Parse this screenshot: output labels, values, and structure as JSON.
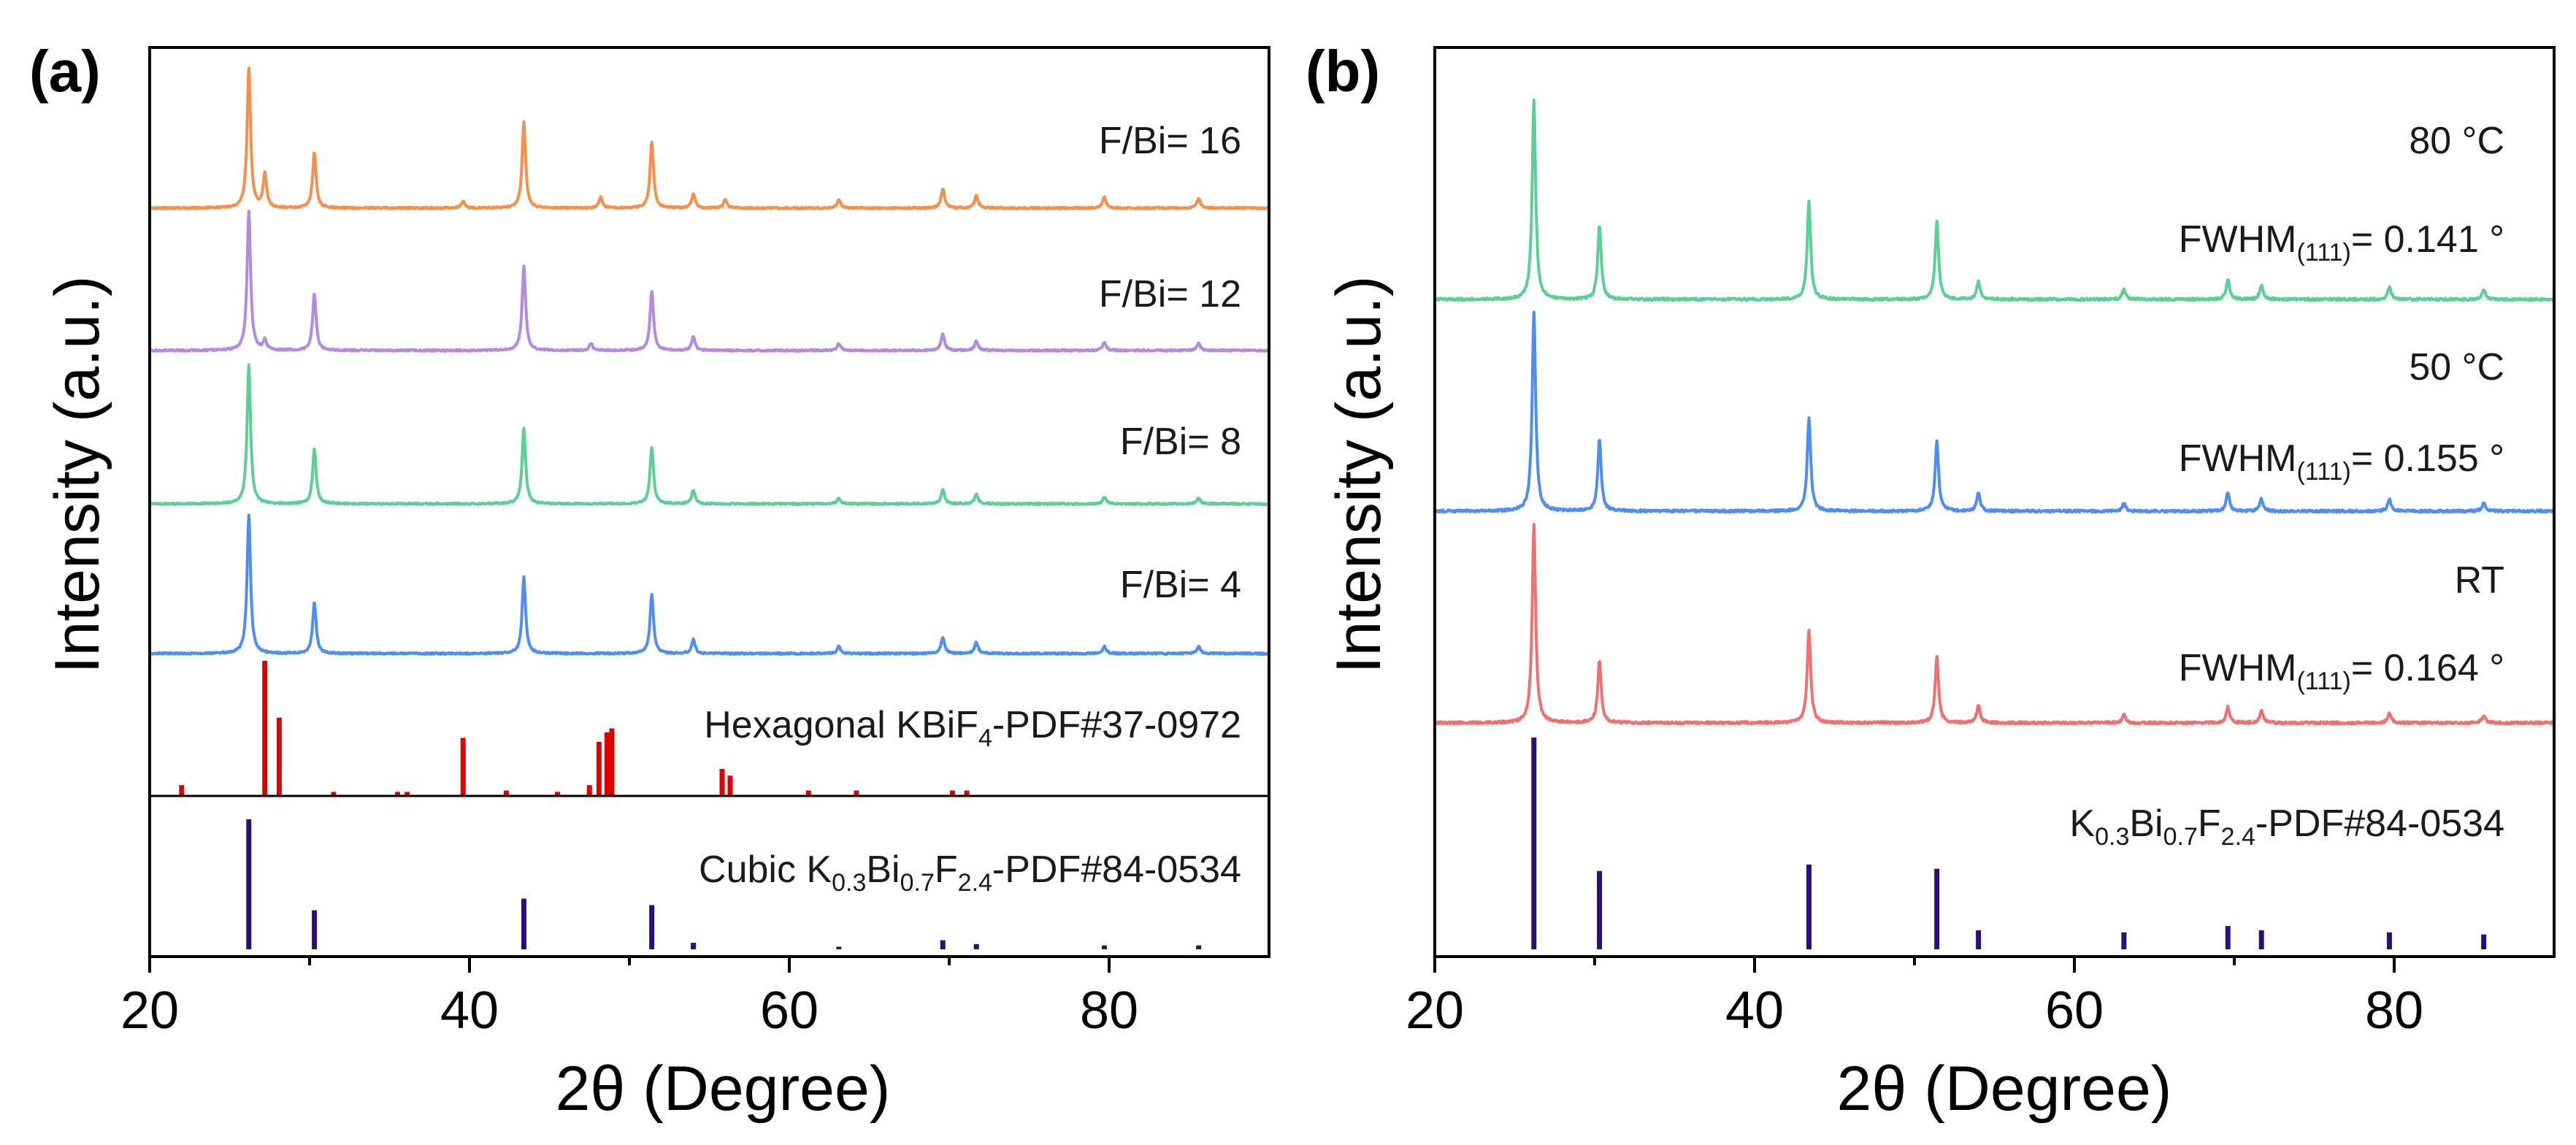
{
  "colors": {
    "orange": "#f4904c",
    "purple": "#b38ae0",
    "green": "#5ccf95",
    "blue": "#4f8ef0",
    "red_trace": "#f07070",
    "ref_red": "#e00000",
    "ref_navy": "#2a0f78"
  },
  "chart_data": [
    {
      "type": "line",
      "panel_label": "(a)",
      "xlabel": "2θ (Degree)",
      "ylabel": "Intensity (a.u.)",
      "xlim": [
        20,
        90
      ],
      "xticks": [
        20,
        40,
        60,
        80
      ],
      "x_tick_labels": [
        "20",
        "40",
        "60",
        "80"
      ],
      "series": [
        {
          "name": "F/Bi= 16",
          "label": "F/Bi= 16",
          "color": "#f4904c",
          "baseline": 1.0,
          "peaks": [
            [
              26.2,
              1.0
            ],
            [
              27.2,
              0.24
            ],
            [
              30.3,
              0.4
            ],
            [
              39.6,
              0.05
            ],
            [
              43.4,
              0.62
            ],
            [
              48.2,
              0.08
            ],
            [
              51.4,
              0.48
            ],
            [
              54.0,
              0.1
            ],
            [
              56.0,
              0.06
            ],
            [
              63.1,
              0.06
            ],
            [
              69.6,
              0.14
            ],
            [
              71.7,
              0.09
            ],
            [
              79.7,
              0.08
            ],
            [
              85.6,
              0.07
            ]
          ]
        },
        {
          "name": "F/Bi= 12",
          "label": "F/Bi= 12",
          "color": "#b38ae0",
          "baseline": 1.0,
          "peaks": [
            [
              26.2,
              1.0
            ],
            [
              27.2,
              0.07
            ],
            [
              30.3,
              0.41
            ],
            [
              43.4,
              0.61
            ],
            [
              47.6,
              0.05
            ],
            [
              51.4,
              0.43
            ],
            [
              54.0,
              0.1
            ],
            [
              63.1,
              0.05
            ],
            [
              69.6,
              0.12
            ],
            [
              71.7,
              0.07
            ],
            [
              79.7,
              0.06
            ],
            [
              85.6,
              0.05
            ]
          ]
        },
        {
          "name": "F/Bi= 8",
          "label": "F/Bi= 8",
          "color": "#5ccf95",
          "baseline": 1.0,
          "peaks": [
            [
              26.2,
              1.0
            ],
            [
              30.3,
              0.4
            ],
            [
              43.4,
              0.55
            ],
            [
              51.4,
              0.41
            ],
            [
              54.0,
              0.1
            ],
            [
              63.1,
              0.04
            ],
            [
              69.6,
              0.1
            ],
            [
              71.7,
              0.07
            ],
            [
              79.7,
              0.05
            ],
            [
              85.6,
              0.04
            ]
          ]
        },
        {
          "name": "F/Bi= 4",
          "label": "F/Bi= 4",
          "color": "#4f8ef0",
          "baseline": 1.0,
          "peaks": [
            [
              26.2,
              1.0
            ],
            [
              30.3,
              0.37
            ],
            [
              43.4,
              0.55
            ],
            [
              51.4,
              0.43
            ],
            [
              54.0,
              0.1
            ],
            [
              63.1,
              0.05
            ],
            [
              69.6,
              0.12
            ],
            [
              71.7,
              0.08
            ],
            [
              79.7,
              0.05
            ],
            [
              85.6,
              0.05
            ]
          ]
        }
      ],
      "reference_patterns": [
        {
          "name": "Hexagonal KBiF4-PDF#37-0972",
          "label_main": "Hexagonal KBiF",
          "label_sub": "4",
          "label_tail": "-PDF#37-0972",
          "color": "#e00000",
          "sticks": [
            [
              22.0,
              0.08
            ],
            [
              27.2,
              1.0
            ],
            [
              28.1,
              0.58
            ],
            [
              31.5,
              0.03
            ],
            [
              35.5,
              0.03
            ],
            [
              36.1,
              0.03
            ],
            [
              39.6,
              0.43
            ],
            [
              42.3,
              0.04
            ],
            [
              45.5,
              0.03
            ],
            [
              47.5,
              0.08
            ],
            [
              48.1,
              0.4
            ],
            [
              48.6,
              0.47
            ],
            [
              48.9,
              0.5
            ],
            [
              55.8,
              0.2
            ],
            [
              56.3,
              0.15
            ],
            [
              61.2,
              0.04
            ],
            [
              64.2,
              0.04
            ],
            [
              70.2,
              0.04
            ],
            [
              71.1,
              0.04
            ]
          ]
        },
        {
          "name": "Cubic K0.3Bi0.7F2.4-PDF#84-0534",
          "label_prefix": "Cubic K",
          "label_k": "0.3",
          "label_bi": "Bi",
          "label_bi_sub": "0.7",
          "label_f": "F",
          "label_f_sub": "2.4",
          "label_tail": "-PDF#84-0534",
          "color": "#2a0f78",
          "sticks": [
            [
              26.2,
              1.0
            ],
            [
              30.3,
              0.3
            ],
            [
              43.4,
              0.39
            ],
            [
              51.4,
              0.34
            ],
            [
              54.0,
              0.05
            ],
            [
              63.1,
              0.02
            ],
            [
              69.6,
              0.07
            ],
            [
              71.7,
              0.04
            ],
            [
              79.7,
              0.03
            ],
            [
              85.6,
              0.03
            ]
          ]
        }
      ]
    },
    {
      "type": "line",
      "panel_label": "(b)",
      "xlabel": "2θ (Degree)",
      "ylabel": "Intensity (a.u.)",
      "xlim": [
        20,
        90
      ],
      "xticks": [
        20,
        40,
        60,
        80
      ],
      "x_tick_labels": [
        "20",
        "40",
        "60",
        "80"
      ],
      "series": [
        {
          "name": "80 °C",
          "label": "80 °C",
          "fwhm_main": "FWHM",
          "fwhm_sub": "(111)",
          "fwhm_value": "= 0.141 °",
          "color": "#5ccf95",
          "baseline": 1.0,
          "peaks": [
            [
              26.2,
              1.0
            ],
            [
              30.3,
              0.37
            ],
            [
              43.4,
              0.49
            ],
            [
              51.4,
              0.39
            ],
            [
              54.0,
              0.09
            ],
            [
              63.1,
              0.05
            ],
            [
              69.6,
              0.1
            ],
            [
              71.7,
              0.07
            ],
            [
              79.7,
              0.06
            ],
            [
              85.6,
              0.05
            ]
          ]
        },
        {
          "name": "50 °C",
          "label": "50 °C",
          "fwhm_main": "FWHM",
          "fwhm_sub": "(111)",
          "fwhm_value": "= 0.155 °",
          "color": "#4f8ef0",
          "baseline": 1.0,
          "peaks": [
            [
              26.2,
              1.0
            ],
            [
              30.3,
              0.36
            ],
            [
              43.4,
              0.47
            ],
            [
              51.4,
              0.35
            ],
            [
              54.0,
              0.09
            ],
            [
              63.1,
              0.04
            ],
            [
              69.6,
              0.09
            ],
            [
              71.7,
              0.06
            ],
            [
              79.7,
              0.06
            ],
            [
              85.6,
              0.04
            ]
          ]
        },
        {
          "name": "RT",
          "label": "RT",
          "fwhm_main": "FWHM",
          "fwhm_sub": "(111)",
          "fwhm_value": "= 0.164 °",
          "color": "#f07070",
          "baseline": 1.0,
          "peaks": [
            [
              26.2,
              1.0
            ],
            [
              30.3,
              0.31
            ],
            [
              43.4,
              0.47
            ],
            [
              51.4,
              0.33
            ],
            [
              54.0,
              0.09
            ],
            [
              63.1,
              0.04
            ],
            [
              69.6,
              0.08
            ],
            [
              71.7,
              0.06
            ],
            [
              79.7,
              0.05
            ],
            [
              85.6,
              0.04
            ]
          ]
        }
      ],
      "reference_patterns": [
        {
          "name": "K0.3Bi0.7F2.4-PDF#84-0534",
          "label_prefix": "K",
          "label_k": "0.3",
          "label_bi": "Bi",
          "label_bi_sub": "0.7",
          "label_f": "F",
          "label_f_sub": "2.4",
          "label_tail": "-PDF#84-0534",
          "color": "#2a0f78",
          "sticks": [
            [
              26.2,
              1.0
            ],
            [
              30.3,
              0.37
            ],
            [
              43.4,
              0.4
            ],
            [
              51.4,
              0.38
            ],
            [
              54.0,
              0.09
            ],
            [
              63.1,
              0.08
            ],
            [
              69.6,
              0.11
            ],
            [
              71.7,
              0.09
            ],
            [
              79.7,
              0.08
            ],
            [
              85.6,
              0.07
            ]
          ]
        }
      ]
    }
  ]
}
